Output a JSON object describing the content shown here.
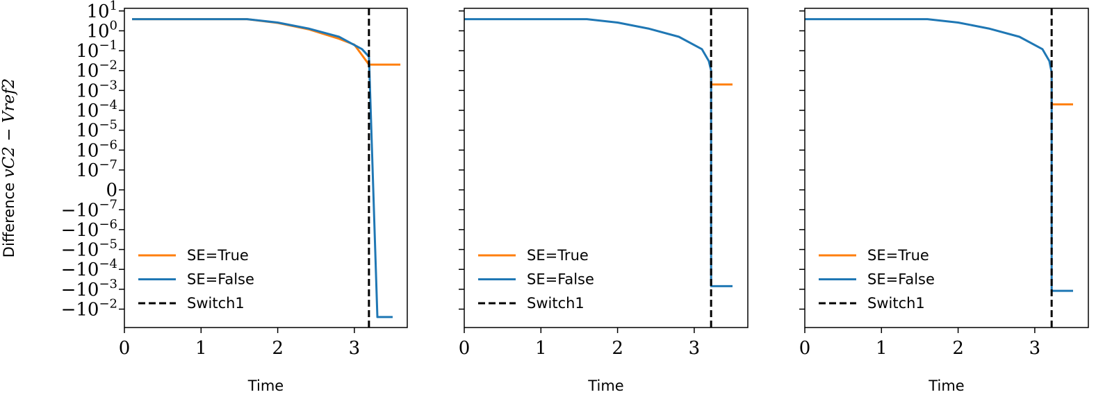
{
  "chart_data": [
    {
      "type": "line",
      "xlabel": "Time",
      "ylabel_parts": {
        "prefix": "Difference ",
        "math": "vC2 − Vref2"
      },
      "yscale": "symlog",
      "x_ticks": [
        "0",
        "1",
        "2",
        "3"
      ],
      "y_ticks": [
        {
          "base": "10",
          "exp": "1",
          "sign": ""
        },
        {
          "base": "10",
          "exp": "0",
          "sign": ""
        },
        {
          "base": "10",
          "exp": "−1",
          "sign": ""
        },
        {
          "base": "10",
          "exp": "−2",
          "sign": ""
        },
        {
          "base": "10",
          "exp": "−3",
          "sign": ""
        },
        {
          "base": "10",
          "exp": "−4",
          "sign": ""
        },
        {
          "base": "10",
          "exp": "−5",
          "sign": ""
        },
        {
          "base": "10",
          "exp": "−6",
          "sign": ""
        },
        {
          "base": "10",
          "exp": "−7",
          "sign": ""
        },
        {
          "base": "0",
          "exp": "",
          "sign": ""
        },
        {
          "base": "10",
          "exp": "−7",
          "sign": "−"
        },
        {
          "base": "10",
          "exp": "−6",
          "sign": "−"
        },
        {
          "base": "10",
          "exp": "−5",
          "sign": "−"
        },
        {
          "base": "10",
          "exp": "−4",
          "sign": "−"
        },
        {
          "base": "10",
          "exp": "−3",
          "sign": "−"
        },
        {
          "base": "10",
          "exp": "−2",
          "sign": "−"
        }
      ],
      "legend": {
        "placement": "lower-left",
        "entries": [
          "SE=True",
          "SE=False",
          "Switch1"
        ]
      },
      "switch_time": 3.19,
      "series": [
        {
          "name": "SE=True",
          "color": "#ff7f0e",
          "x": [
            0.1,
            1.6,
            2.0,
            2.4,
            2.8,
            3.0,
            3.19,
            3.19,
            3.6
          ],
          "y": [
            3.86,
            3.86,
            2.5,
            1.2,
            0.4,
            0.2,
            0.02,
            0.02,
            0.02
          ]
        },
        {
          "name": "SE=False",
          "color": "#1f77b4",
          "x": [
            0.1,
            1.6,
            2.0,
            2.4,
            2.8,
            3.1,
            3.19,
            3.3,
            3.5
          ],
          "y": [
            3.86,
            3.86,
            2.6,
            1.3,
            0.5,
            0.12,
            0.05,
            -0.025,
            -0.025
          ]
        }
      ]
    },
    {
      "type": "line",
      "xlabel": "Time",
      "yscale": "symlog",
      "x_ticks": [
        "0",
        "1",
        "2",
        "3"
      ],
      "legend": {
        "placement": "lower-left",
        "entries": [
          "SE=True",
          "SE=False",
          "Switch1"
        ]
      },
      "switch_time": 3.22,
      "series": [
        {
          "name": "SE=True",
          "color": "#ff7f0e",
          "x": [
            3.22,
            3.22,
            3.5
          ],
          "y": [
            0.01,
            0.002,
            0.002
          ]
        },
        {
          "name": "SE=False",
          "color": "#1f77b4",
          "x": [
            0,
            1.6,
            2.0,
            2.4,
            2.8,
            3.1,
            3.19,
            3.22,
            3.22,
            3.22,
            3.5
          ],
          "y": [
            3.86,
            3.86,
            2.6,
            1.3,
            0.5,
            0.12,
            0.03,
            0.01,
            -0.0007,
            -0.0007,
            -0.0007
          ]
        }
      ]
    },
    {
      "type": "line",
      "xlabel": "Time",
      "yscale": "symlog",
      "x_ticks": [
        "0",
        "1",
        "2",
        "3"
      ],
      "legend": {
        "placement": "lower-left",
        "entries": [
          "SE=True",
          "SE=False",
          "Switch1"
        ]
      },
      "switch_time": 3.22,
      "series": [
        {
          "name": "SE=True",
          "color": "#ff7f0e",
          "x": [
            3.22,
            3.22,
            3.5
          ],
          "y": [
            0.008,
            0.0002,
            0.0002
          ]
        },
        {
          "name": "SE=False",
          "color": "#1f77b4",
          "x": [
            0,
            1.6,
            2.0,
            2.4,
            2.8,
            3.1,
            3.19,
            3.22,
            3.22,
            3.22,
            3.5
          ],
          "y": [
            3.86,
            3.86,
            2.6,
            1.3,
            0.5,
            0.12,
            0.03,
            0.008,
            -0.0012,
            -0.0012,
            -0.0012
          ]
        }
      ]
    }
  ]
}
